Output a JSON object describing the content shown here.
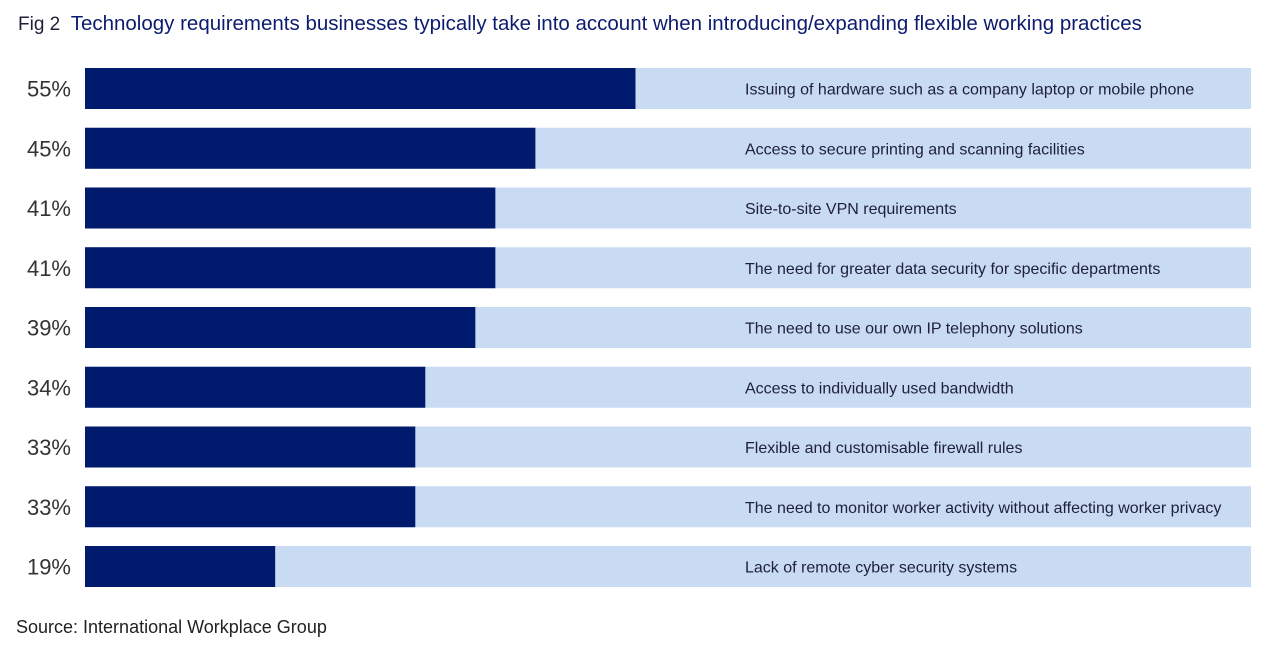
{
  "header": {
    "fig_label": "Fig 2",
    "title": "Technology requirements businesses typically take into account when introducing/expanding flexible working practices"
  },
  "chart_data": {
    "type": "bar",
    "orientation": "horizontal",
    "categories": [
      "Issuing of hardware such as a company laptop or mobile phone",
      "Access to secure printing and scanning facilities",
      "Site-to-site VPN requirements",
      "The need for greater data security for specific departments",
      "The need to use our own IP telephony solutions",
      "Access to individually used bandwidth",
      "Flexible and customisable firewall rules",
      "The need to monitor worker activity without affecting worker privacy",
      "Lack of remote cyber security systems"
    ],
    "values": [
      55,
      45,
      41,
      41,
      39,
      34,
      33,
      33,
      19
    ],
    "value_labels": [
      "55%",
      "45%",
      "41%",
      "41%",
      "39%",
      "34%",
      "33%",
      "33%",
      "19%"
    ],
    "xlim": [
      0,
      100
    ],
    "unit": "%",
    "grid": false,
    "legend": "none",
    "colors": {
      "bar": "#001a6e",
      "track": "#c8dbf3",
      "label_text": "#1f1f3a",
      "value_text": "#333333"
    }
  },
  "footer": {
    "source": "Source: International Workplace Group"
  }
}
